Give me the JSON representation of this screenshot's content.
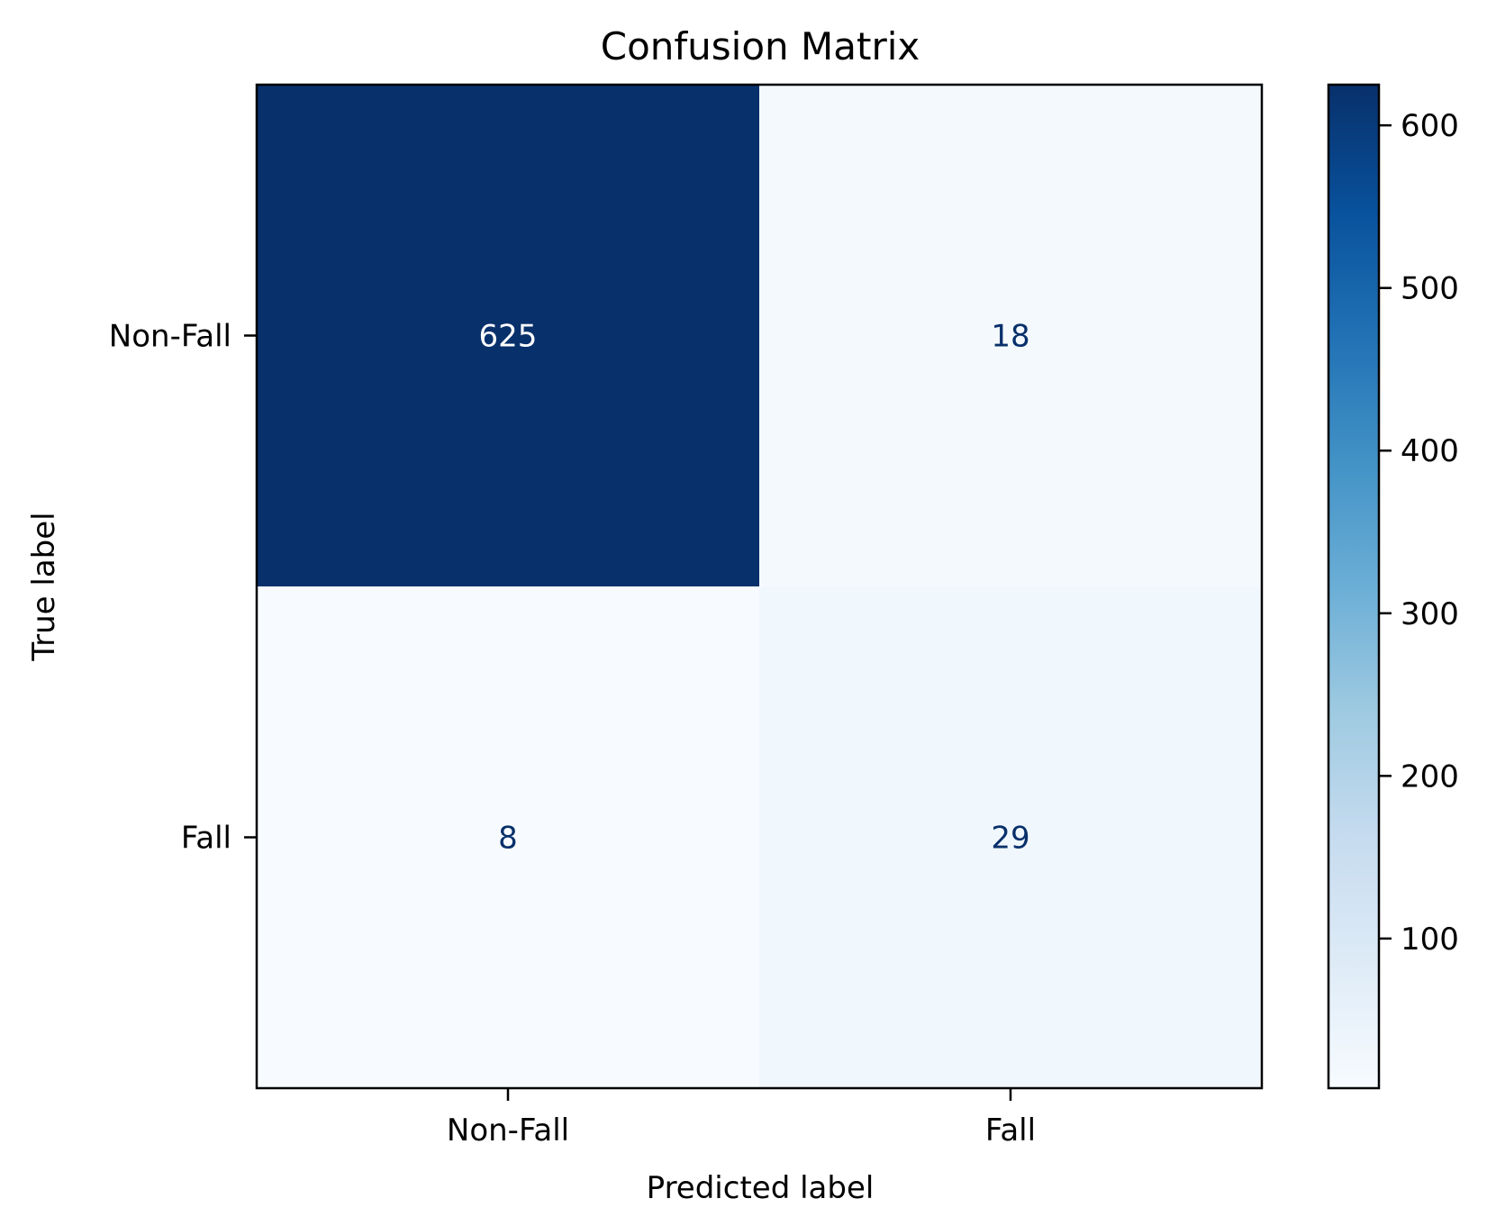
{
  "chart_data": {
    "type": "heatmap",
    "title": "Confusion Matrix",
    "xlabel": "Predicted label",
    "ylabel": "True label",
    "x_categories": [
      "Non-Fall",
      "Fall"
    ],
    "y_categories": [
      "Non-Fall",
      "Fall"
    ],
    "values": [
      [
        625,
        18
      ],
      [
        8,
        29
      ]
    ],
    "colormap": "Blues",
    "colorbar": {
      "range": [
        8,
        625
      ],
      "ticks": [
        100,
        200,
        300,
        400,
        500,
        600
      ],
      "tick_labels": [
        "100",
        "200",
        "300",
        "400",
        "500",
        "600"
      ]
    },
    "text_colors": {
      "dark_cell": "#ffffff",
      "light_cell": "#08306b"
    },
    "grid": false
  }
}
